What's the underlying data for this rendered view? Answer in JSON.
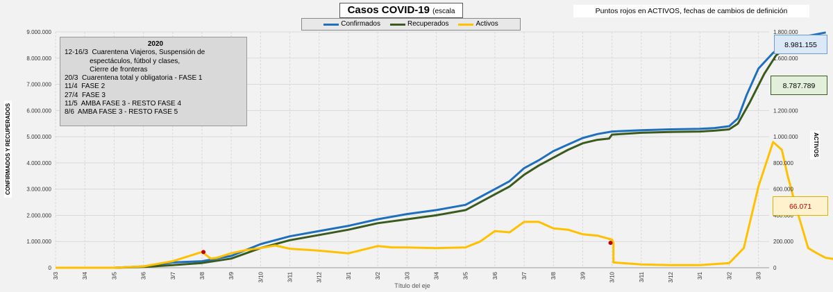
{
  "header": {
    "title": "Casos  COVID-19",
    "title_suffix": "(escala lineal)",
    "note": "Puntos rojos en ACTIVOS, fechas de cambios de definición"
  },
  "annotation": {
    "year": "2020",
    "lines": [
      "12-16/3  Cuarentena Viajeros, Suspensión de",
      "             espectáculos, fútbol y clases,",
      "             Cierre de fronteras",
      "20/3  Cuarentena total y obligatoria - FASE 1",
      "11/4  FASE 2",
      "27/4  FASE 3",
      "11/5  AMBA FASE 3 - RESTO FASE 4",
      "8/6  AMBA FASE 3 - RESTO FASE 5"
    ]
  },
  "value_boxes": {
    "confirmados": "8.981.155",
    "recuperados": "8.787.789",
    "activos": "66.071"
  },
  "colors": {
    "confirmados": "#1f6fbf",
    "recuperados": "#3a5a1e",
    "activos": "#ffc000",
    "markers": "#c00000"
  },
  "chart_data": {
    "type": "line",
    "xlabel": "Título del eje",
    "ylabel_left": "CONFIRMADOS  Y RECUPERADOS",
    "ylabel_right": "ACTIVOS",
    "ylim_left": [
      0,
      9000000
    ],
    "ylim_right": [
      0,
      1800000
    ],
    "y_ticks_left": [
      "0",
      "1.000.000",
      "2.000.000",
      "3.000.000",
      "4.000.000",
      "5.000.000",
      "6.000.000",
      "7.000.000",
      "8.000.000",
      "9.000.000"
    ],
    "y_ticks_right": [
      "0",
      "200.000",
      "400.000",
      "600.000",
      "800.000",
      "1.000.000",
      "1.200.000",
      "1.400.000",
      "1.600.000",
      "1.800.000"
    ],
    "x_ticks": [
      "3/3",
      "3/4",
      "3/5",
      "3/6",
      "3/7",
      "3/8",
      "3/9",
      "3/10",
      "3/11",
      "3/12",
      "3/1",
      "3/2",
      "3/3",
      "3/4",
      "3/5",
      "3/6",
      "3/7",
      "3/8",
      "3/9",
      "3/10",
      "3/11",
      "3/12",
      "3/1",
      "3/2",
      "3/3"
    ],
    "grid": true,
    "legend": "top",
    "series": [
      {
        "name": "Confirmados",
        "axis": "left",
        "points": [
          [
            0,
            0
          ],
          [
            2,
            0
          ],
          [
            3,
            50000
          ],
          [
            4,
            200000
          ],
          [
            5,
            250000
          ],
          [
            6,
            450000
          ],
          [
            7,
            900000
          ],
          [
            8,
            1200000
          ],
          [
            9,
            1400000
          ],
          [
            10,
            1600000
          ],
          [
            11,
            1850000
          ],
          [
            12,
            2050000
          ],
          [
            13,
            2200000
          ],
          [
            14,
            2400000
          ],
          [
            14.5,
            2700000
          ],
          [
            15,
            3000000
          ],
          [
            15.5,
            3300000
          ],
          [
            16,
            3800000
          ],
          [
            16.5,
            4100000
          ],
          [
            17,
            4450000
          ],
          [
            17.5,
            4700000
          ],
          [
            18,
            4950000
          ],
          [
            18.5,
            5100000
          ],
          [
            19,
            5200000
          ],
          [
            20,
            5250000
          ],
          [
            21,
            5280000
          ],
          [
            22,
            5300000
          ],
          [
            22.5,
            5330000
          ],
          [
            23,
            5400000
          ],
          [
            23.3,
            5700000
          ],
          [
            23.6,
            6600000
          ],
          [
            24,
            7600000
          ],
          [
            24.5,
            8200000
          ],
          [
            25,
            8600000
          ],
          [
            25.7,
            8850000
          ],
          [
            26.3,
            8980000
          ]
        ]
      },
      {
        "name": "Recuperados",
        "axis": "left",
        "points": [
          [
            0,
            0
          ],
          [
            2,
            0
          ],
          [
            3,
            30000
          ],
          [
            4,
            100000
          ],
          [
            5,
            180000
          ],
          [
            6,
            350000
          ],
          [
            7,
            750000
          ],
          [
            8,
            1050000
          ],
          [
            9,
            1250000
          ],
          [
            10,
            1450000
          ],
          [
            11,
            1700000
          ],
          [
            12,
            1850000
          ],
          [
            13,
            2000000
          ],
          [
            14,
            2200000
          ],
          [
            14.5,
            2500000
          ],
          [
            15,
            2800000
          ],
          [
            15.5,
            3100000
          ],
          [
            16,
            3550000
          ],
          [
            16.5,
            3900000
          ],
          [
            17,
            4200000
          ],
          [
            17.5,
            4500000
          ],
          [
            18,
            4750000
          ],
          [
            18.5,
            4880000
          ],
          [
            18.9,
            4930000
          ],
          [
            19,
            5080000
          ],
          [
            20,
            5150000
          ],
          [
            21,
            5180000
          ],
          [
            22,
            5200000
          ],
          [
            22.5,
            5230000
          ],
          [
            23,
            5280000
          ],
          [
            23.3,
            5500000
          ],
          [
            23.7,
            6300000
          ],
          [
            24.2,
            7400000
          ],
          [
            24.6,
            8100000
          ],
          [
            25,
            8450000
          ],
          [
            25.7,
            8700000
          ],
          [
            26.3,
            8790000
          ]
        ]
      },
      {
        "name": "Activos",
        "axis": "right",
        "points": [
          [
            0,
            0
          ],
          [
            2,
            0
          ],
          [
            3,
            10000
          ],
          [
            4,
            50000
          ],
          [
            5,
            120000
          ],
          [
            5.3,
            70000
          ],
          [
            5.5,
            75000
          ],
          [
            6,
            110000
          ],
          [
            6.5,
            135000
          ],
          [
            7,
            150000
          ],
          [
            7.5,
            170000
          ],
          [
            8,
            145000
          ],
          [
            9,
            130000
          ],
          [
            10,
            110000
          ],
          [
            11,
            165000
          ],
          [
            11.5,
            155000
          ],
          [
            12,
            155000
          ],
          [
            13,
            150000
          ],
          [
            14,
            155000
          ],
          [
            14.5,
            200000
          ],
          [
            15,
            280000
          ],
          [
            15.5,
            270000
          ],
          [
            16,
            350000
          ],
          [
            16.5,
            350000
          ],
          [
            17,
            300000
          ],
          [
            17.5,
            290000
          ],
          [
            18,
            255000
          ],
          [
            18.5,
            245000
          ],
          [
            19,
            215000
          ],
          [
            19.05,
            190000
          ],
          [
            19.05,
            40000
          ],
          [
            20,
            25000
          ],
          [
            21,
            20000
          ],
          [
            22,
            20000
          ],
          [
            23,
            35000
          ],
          [
            23.5,
            150000
          ],
          [
            24,
            620000
          ],
          [
            24.5,
            960000
          ],
          [
            24.8,
            900000
          ],
          [
            25,
            700000
          ],
          [
            25.3,
            450000
          ],
          [
            25.7,
            150000
          ],
          [
            26,
            110000
          ],
          [
            26.3,
            75000
          ],
          [
            26.6,
            66071
          ]
        ]
      }
    ],
    "markers": [
      {
        "series": "Activos",
        "x": 5.05,
        "y": 120000
      },
      {
        "series": "Activos",
        "x": 18.95,
        "y": 190000
      }
    ]
  }
}
